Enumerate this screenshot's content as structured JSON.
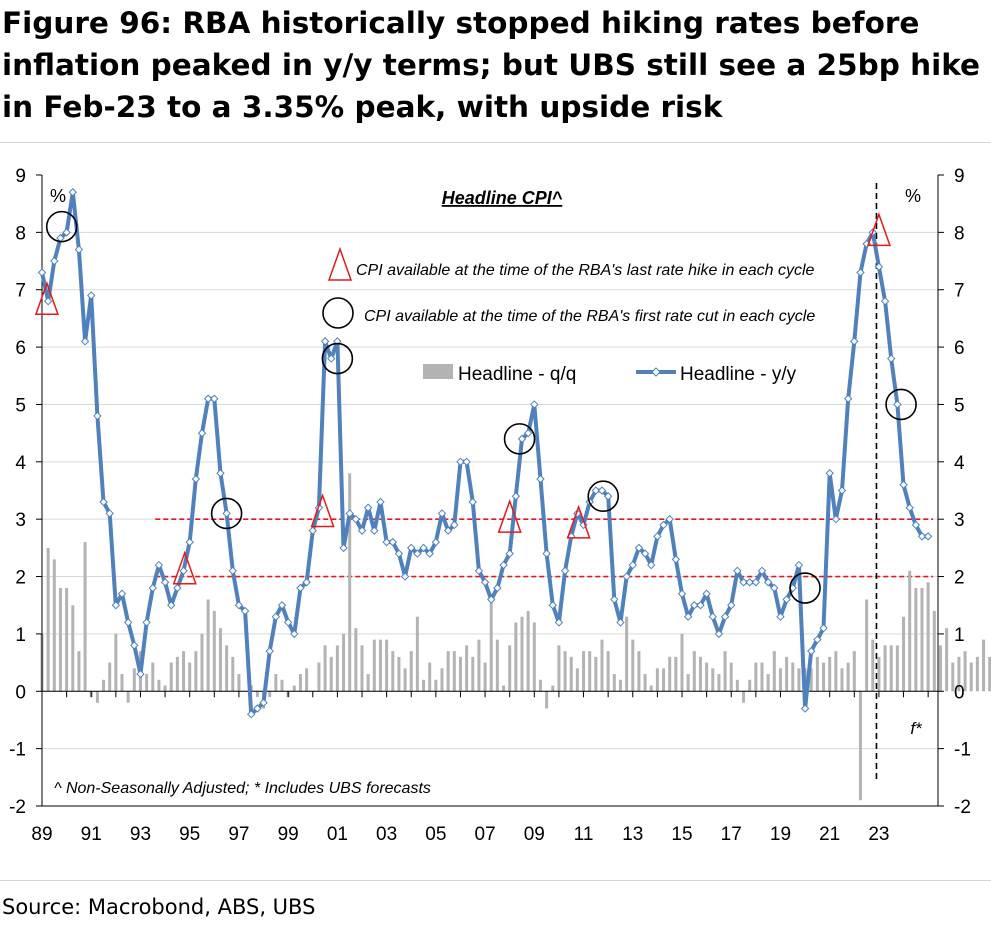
{
  "figure_title": "Figure 96: RBA historically stopped hiking rates before inflation peaked in y/y terms; but UBS still see a 25bp hike in Feb-23 to a 3.35% peak, with upside risk",
  "source": "Source: Macrobond, ABS, UBS",
  "chart_data": {
    "type": "line",
    "title": "Headline CPI^",
    "y_unit_left": "%",
    "y_unit_right": "%",
    "ylim": [
      -2,
      9
    ],
    "yticks": [
      -2,
      -1,
      0,
      1,
      2,
      3,
      4,
      5,
      6,
      7,
      8,
      9
    ],
    "xlim": [
      1989,
      2025.4
    ],
    "xticks": [
      "89",
      "91",
      "93",
      "95",
      "97",
      "99",
      "01",
      "03",
      "05",
      "07",
      "09",
      "11",
      "13",
      "15",
      "17",
      "19",
      "21",
      "23"
    ],
    "xtick_years": [
      1989,
      1991,
      1993,
      1995,
      1997,
      1999,
      2001,
      2003,
      2005,
      2007,
      2009,
      2011,
      2013,
      2015,
      2017,
      2019,
      2021,
      2023
    ],
    "grid": true,
    "footnote": "^ Non-Seasonally Adjusted; * Includes UBS forecasts",
    "forecast_label": "f*",
    "forecast_start_year": 2022.9,
    "annotations": {
      "triangle_legend": "CPI available at the time of the RBA's last rate hike in each cycle",
      "circle_legend": "CPI available at the time of the RBA's first rate cut in each cycle",
      "triangles": [
        [
          1989.2,
          6.8
        ],
        [
          1994.8,
          2.1
        ],
        [
          2000.4,
          3.1
        ],
        [
          2008.0,
          3.0
        ],
        [
          2010.8,
          2.9
        ],
        [
          2023.0,
          8.0
        ]
      ],
      "circles": [
        [
          1989.8,
          8.1
        ],
        [
          1996.5,
          3.1
        ],
        [
          2001.0,
          5.8
        ],
        [
          2008.4,
          4.4
        ],
        [
          2011.8,
          3.4
        ],
        [
          2020.0,
          1.8
        ],
        [
          2023.9,
          5.0
        ]
      ]
    },
    "reference_lines": [
      2.0,
      3.0
    ],
    "series": [
      {
        "name": "Headline - q/q",
        "type": "bar",
        "color": "#b3b3b3",
        "x_start": 1989.0,
        "step": 0.25,
        "values": [
          1.0,
          2.5,
          2.3,
          1.8,
          1.8,
          1.5,
          0.7,
          2.6,
          -0.1,
          -0.2,
          0.2,
          0.5,
          1.0,
          0.3,
          -0.2,
          0.4,
          0.7,
          0.3,
          0.5,
          0.2,
          0.1,
          0.5,
          0.6,
          0.7,
          0.5,
          0.7,
          1.0,
          1.6,
          1.4,
          1.1,
          0.8,
          0.6,
          0.3,
          0.0,
          0.1,
          -0.1,
          -0.3,
          -0.1,
          0.3,
          0.2,
          -0.1,
          0.1,
          0.3,
          0.4,
          0.0,
          0.5,
          0.8,
          0.6,
          0.8,
          1.0,
          3.8,
          1.1,
          0.8,
          0.3,
          0.9,
          0.9,
          0.9,
          0.7,
          0.6,
          0.4,
          0.7,
          1.3,
          0.2,
          0.5,
          0.2,
          0.4,
          0.7,
          0.7,
          0.6,
          0.8,
          0.6,
          0.9,
          0.5,
          1.7,
          0.9,
          0.1,
          0.8,
          1.2,
          1.3,
          1.4,
          1.2,
          0.2,
          -0.3,
          0.1,
          0.8,
          0.7,
          0.6,
          0.4,
          0.7,
          0.7,
          0.6,
          0.9,
          0.7,
          0.3,
          0.2,
          1.3,
          0.9,
          0.7,
          0.3,
          0.1,
          0.4,
          0.4,
          0.6,
          0.6,
          1.0,
          0.3,
          0.7,
          0.6,
          0.5,
          0.4,
          0.3,
          0.7,
          0.5,
          0.2,
          -0.2,
          0.2,
          0.5,
          0.5,
          0.3,
          0.7,
          0.4,
          0.6,
          0.5,
          0.4,
          0.4,
          0.4,
          0.6,
          0.5,
          0.6,
          0.7,
          0.4,
          0.5,
          0.7,
          -1.9,
          1.6,
          0.9,
          0.6,
          0.8,
          0.8,
          0.8,
          1.3,
          2.1,
          1.8,
          1.8,
          1.9,
          1.4,
          0.8,
          1.1,
          0.5,
          0.6,
          0.7,
          0.5,
          0.6,
          0.9,
          0.6
        ]
      },
      {
        "name": "Headline - y/y",
        "type": "line",
        "color": "#4f81bd",
        "x_start": 1989.0,
        "step": 0.25,
        "values": [
          7.3,
          6.8,
          7.5,
          7.9,
          8.0,
          8.7,
          7.7,
          6.1,
          6.9,
          4.8,
          3.3,
          3.1,
          1.5,
          1.7,
          1.2,
          0.8,
          0.3,
          1.2,
          1.8,
          2.2,
          1.9,
          1.5,
          1.8,
          2.1,
          2.6,
          3.7,
          4.5,
          5.1,
          5.1,
          3.8,
          3.1,
          2.1,
          1.5,
          1.4,
          -0.4,
          -0.3,
          -0.2,
          0.7,
          1.3,
          1.5,
          1.2,
          1.0,
          1.8,
          1.9,
          2.8,
          3.2,
          6.1,
          5.8,
          6.1,
          2.5,
          3.1,
          3.0,
          2.8,
          3.2,
          2.8,
          3.3,
          2.6,
          2.6,
          2.4,
          2.0,
          2.5,
          2.4,
          2.5,
          2.4,
          2.6,
          3.1,
          2.8,
          2.9,
          4.0,
          4.0,
          3.3,
          2.1,
          1.9,
          1.6,
          1.8,
          2.2,
          2.4,
          3.4,
          4.4,
          4.5,
          5.0,
          3.7,
          2.4,
          1.5,
          1.2,
          2.1,
          2.7,
          3.1,
          2.9,
          3.3,
          3.5,
          3.5,
          3.4,
          1.6,
          1.2,
          2.0,
          2.2,
          2.5,
          2.4,
          2.2,
          2.7,
          2.9,
          3.0,
          2.3,
          1.7,
          1.3,
          1.5,
          1.5,
          1.7,
          1.3,
          1.0,
          1.3,
          1.5,
          2.1,
          1.9,
          1.9,
          1.9,
          2.1,
          1.9,
          1.8,
          1.3,
          1.6,
          1.8,
          2.2,
          -0.3,
          0.7,
          0.9,
          1.1,
          3.8,
          3.0,
          3.5,
          5.1,
          6.1,
          7.3,
          7.8,
          8.0,
          7.4,
          6.8,
          5.8,
          5.0,
          3.6,
          3.2,
          2.9,
          2.7,
          2.7
        ]
      }
    ]
  }
}
